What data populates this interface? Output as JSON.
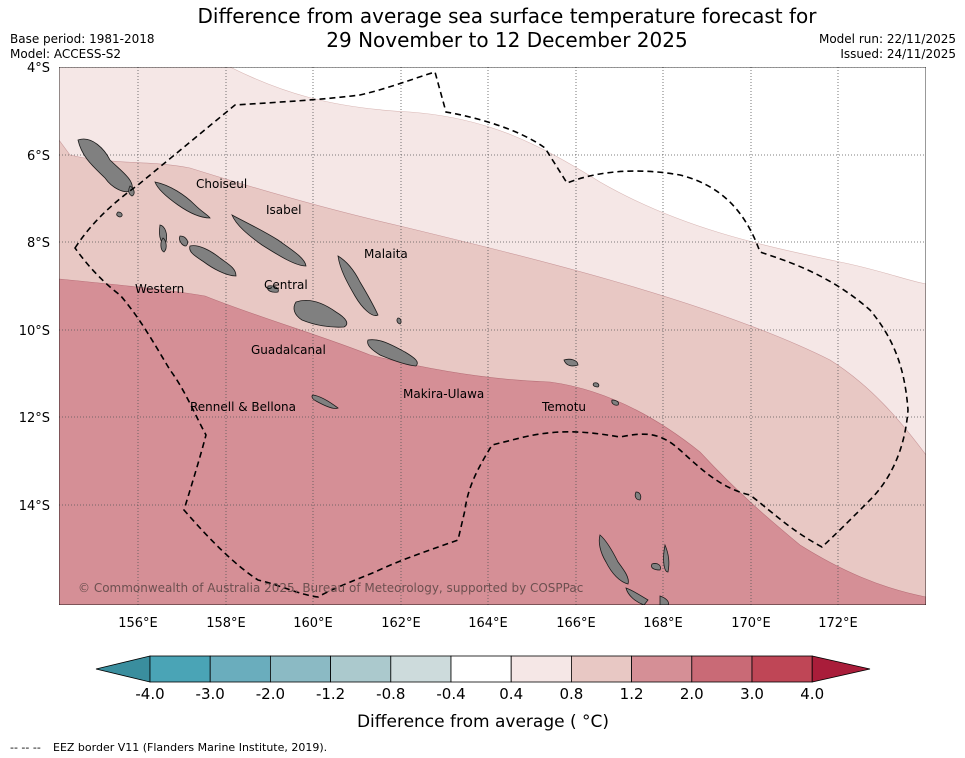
{
  "header": {
    "title_line1": "Difference from average sea surface temperature forecast for",
    "title_line2": "29 November to 12 December 2025",
    "base_period": "Base period: 1981-2018",
    "model": "Model: ACCESS-S2",
    "model_run": "Model run: 22/11/2025",
    "issued": "Issued: 24/11/2025"
  },
  "map": {
    "lat_labels": [
      "4°S",
      "6°S",
      "8°S",
      "10°S",
      "12°S",
      "14°S"
    ],
    "lon_labels": [
      "156°E",
      "158°E",
      "160°E",
      "162°E",
      "164°E",
      "166°E",
      "168°E",
      "170°E",
      "172°E"
    ],
    "provinces": [
      "Choiseul",
      "Isabel",
      "Malaita",
      "Western",
      "Central",
      "Guadalcanal",
      "Makira-Ulawa",
      "Rennell & Bellona",
      "Temotu"
    ],
    "copyright": "© Commonwealth of Australia 2025, Bureau of Meteorology, supported by COSPPac",
    "colors": {
      "band_0_4_to_0_8": "#f5e7e6",
      "band_0_8_to_1_2": "#e8c8c4",
      "band_1_2_to_2_0": "#d58f96",
      "land": "#808080"
    }
  },
  "colorbar": {
    "ticks": [
      "-4.0",
      "-3.0",
      "-2.0",
      "-1.2",
      "-0.8",
      "-0.4",
      "0.4",
      "0.8",
      "1.2",
      "2.0",
      "3.0",
      "4.0"
    ],
    "colors": [
      "#3a8e9e",
      "#4aa4b6",
      "#6aadbd",
      "#8bbac4",
      "#abc9cd",
      "#cddbdc",
      "#ffffff",
      "#f5e7e6",
      "#e8c8c4",
      "#d58f96",
      "#c96a76",
      "#bf4656",
      "#a91d3a"
    ],
    "label": "Difference from average ( °C)"
  },
  "footer": {
    "legend_dash": "-- -- --",
    "legend_text": "EEZ border V11 (Flanders Marine Institute, 2019)."
  }
}
